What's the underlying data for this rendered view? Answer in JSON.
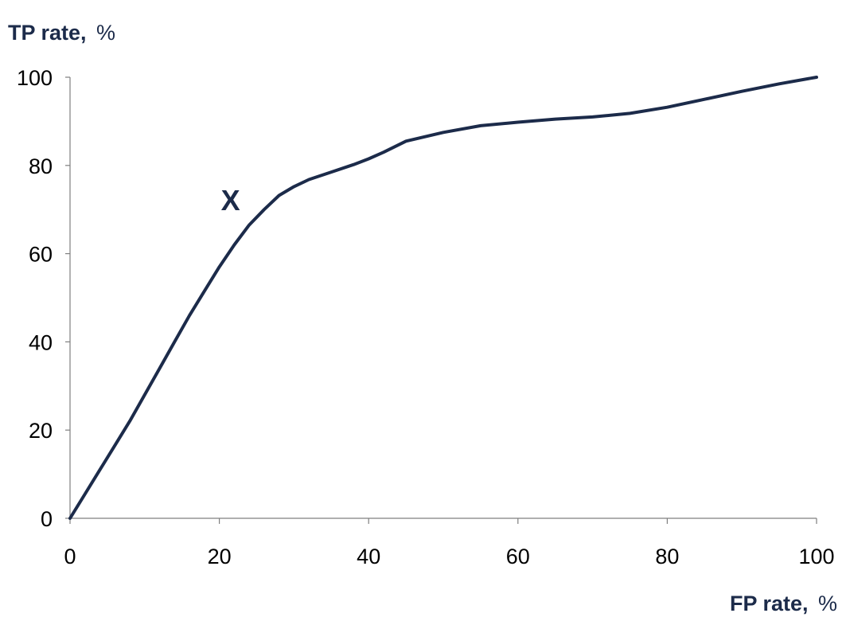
{
  "chart_data": {
    "type": "line",
    "ylabel_bold": "TP rate,",
    "ylabel_unit": "%",
    "xlabel_bold": "FP rate,",
    "xlabel_unit": "%",
    "xlim": [
      0,
      100
    ],
    "ylim": [
      0,
      100
    ],
    "x_ticks": [
      "0",
      "20",
      "40",
      "60",
      "80",
      "100"
    ],
    "y_ticks": [
      "0",
      "20",
      "40",
      "60",
      "80",
      "100"
    ],
    "grid": false,
    "series": [
      {
        "color": "#1c2b4a",
        "x": [
          0,
          2,
          4,
          6,
          8,
          10,
          12,
          14,
          16,
          18,
          20,
          22,
          24,
          26,
          28,
          30,
          32,
          35,
          38,
          40,
          42,
          45,
          50,
          55,
          60,
          65,
          70,
          75,
          80,
          85,
          90,
          95,
          100
        ],
        "y": [
          0,
          5.5,
          11,
          16.5,
          22,
          28,
          34,
          40,
          46,
          51.5,
          57,
          62,
          66.5,
          70,
          73.2,
          75.2,
          76.8,
          78.5,
          80.2,
          81.5,
          83,
          85.5,
          87.5,
          89,
          89.8,
          90.5,
          91,
          91.8,
          93.2,
          95,
          96.8,
          98.5,
          100
        ]
      }
    ],
    "annotations": [
      {
        "text": "X",
        "x": 21.5,
        "y": 72
      }
    ]
  }
}
